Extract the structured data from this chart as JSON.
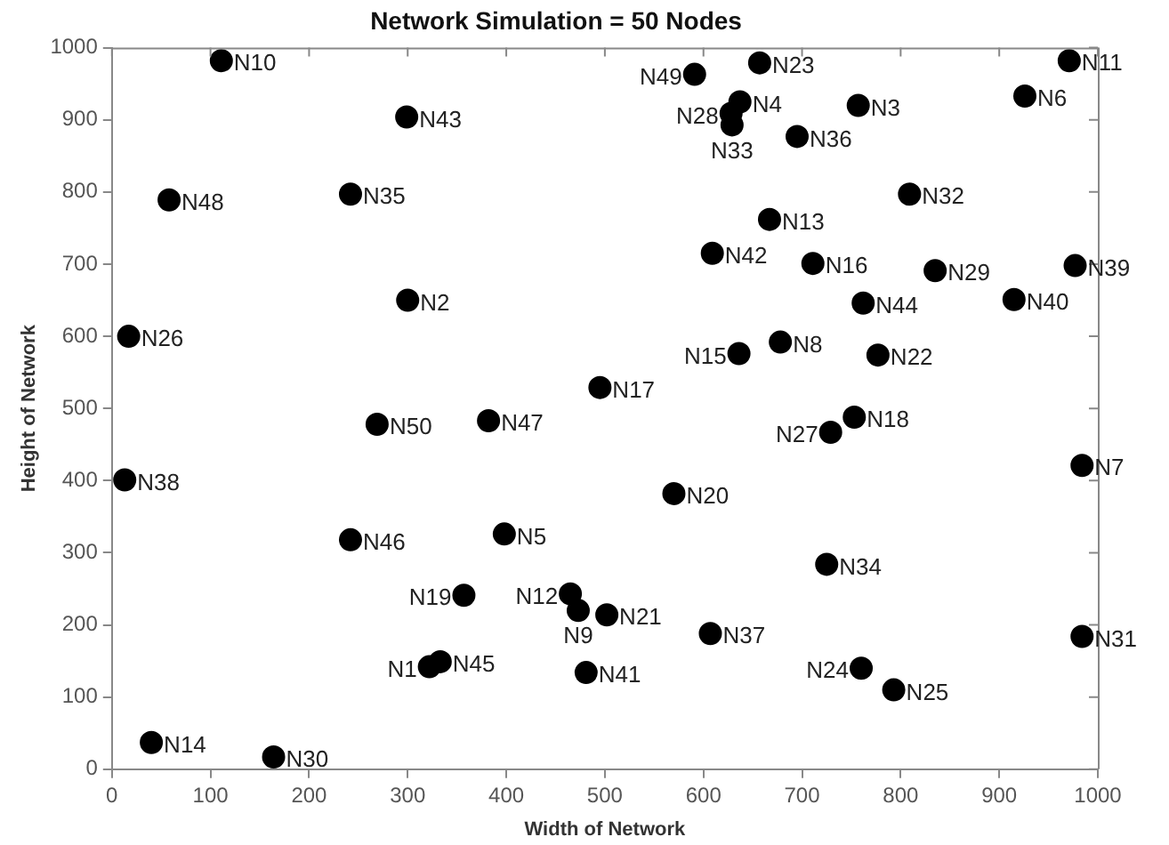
{
  "chart_data": {
    "type": "scatter",
    "title": "Network Simulation = 50 Nodes",
    "xlabel": "Width of Network",
    "ylabel": "Height of Network",
    "xlim": [
      0,
      1000
    ],
    "xticks": [
      0,
      100,
      200,
      300,
      400,
      500,
      600,
      700,
      800,
      900,
      1000
    ],
    "ylim": [
      0,
      1000
    ],
    "yticks": [
      0,
      100,
      200,
      300,
      400,
      500,
      600,
      700,
      800,
      900,
      1000
    ],
    "grid": false,
    "legend": false,
    "marker": "circle",
    "series": [
      {
        "color": "#000000",
        "x": [
          322,
          300,
          757,
          637,
          398,
          926,
          984,
          678,
          473,
          111,
          971,
          465,
          667,
          40,
          636,
          711,
          495,
          753,
          357,
          570,
          502,
          777,
          657,
          760,
          793,
          17,
          729,
          628,
          835,
          164,
          984,
          809,
          629,
          725,
          242,
          695,
          607,
          13,
          977,
          915,
          481,
          609,
          299,
          762,
          333,
          242,
          382,
          58,
          591,
          269
        ],
        "values": [
          142,
          650,
          920,
          925,
          326,
          933,
          421,
          592,
          220,
          982,
          982,
          243,
          762,
          37,
          576,
          701,
          529,
          488,
          241,
          382,
          214,
          574,
          979,
          140,
          110,
          600,
          467,
          909,
          691,
          17,
          184,
          797,
          893,
          284,
          797,
          877,
          188,
          401,
          698,
          651,
          134,
          715,
          904,
          646,
          149,
          318,
          483,
          789,
          963,
          478
        ]
      }
    ],
    "annotations": [
      {
        "text": "N1",
        "x": 322,
        "y": 142
      },
      {
        "text": "N2",
        "x": 300,
        "y": 650
      },
      {
        "text": "N3",
        "x": 757,
        "y": 920
      },
      {
        "text": "N4",
        "x": 637,
        "y": 925
      },
      {
        "text": "N5",
        "x": 398,
        "y": 326
      },
      {
        "text": "N6",
        "x": 926,
        "y": 933
      },
      {
        "text": "N7",
        "x": 984,
        "y": 421
      },
      {
        "text": "N8",
        "x": 678,
        "y": 592
      },
      {
        "text": "N9",
        "x": 473,
        "y": 220
      },
      {
        "text": "N10",
        "x": 111,
        "y": 982
      },
      {
        "text": "N11",
        "x": 971,
        "y": 982
      },
      {
        "text": "N12",
        "x": 465,
        "y": 243
      },
      {
        "text": "N13",
        "x": 667,
        "y": 762
      },
      {
        "text": "N14",
        "x": 40,
        "y": 37
      },
      {
        "text": "N15",
        "x": 636,
        "y": 576
      },
      {
        "text": "N16",
        "x": 711,
        "y": 701
      },
      {
        "text": "N17",
        "x": 495,
        "y": 529
      },
      {
        "text": "N18",
        "x": 753,
        "y": 488
      },
      {
        "text": "N19",
        "x": 357,
        "y": 241
      },
      {
        "text": "N20",
        "x": 570,
        "y": 382
      },
      {
        "text": "N21",
        "x": 502,
        "y": 214
      },
      {
        "text": "N22",
        "x": 777,
        "y": 574
      },
      {
        "text": "N23",
        "x": 657,
        "y": 979
      },
      {
        "text": "N24",
        "x": 760,
        "y": 140
      },
      {
        "text": "N25",
        "x": 793,
        "y": 110
      },
      {
        "text": "N26",
        "x": 17,
        "y": 600
      },
      {
        "text": "N27",
        "x": 729,
        "y": 467
      },
      {
        "text": "N28",
        "x": 628,
        "y": 909
      },
      {
        "text": "N29",
        "x": 835,
        "y": 691
      },
      {
        "text": "N30",
        "x": 164,
        "y": 17
      },
      {
        "text": "N31",
        "x": 984,
        "y": 184
      },
      {
        "text": "N32",
        "x": 809,
        "y": 797
      },
      {
        "text": "N33",
        "x": 629,
        "y": 893
      },
      {
        "text": "N34",
        "x": 725,
        "y": 284
      },
      {
        "text": "N35",
        "x": 242,
        "y": 797
      },
      {
        "text": "N36",
        "x": 695,
        "y": 877
      },
      {
        "text": "N37",
        "x": 607,
        "y": 188
      },
      {
        "text": "N38",
        "x": 13,
        "y": 401
      },
      {
        "text": "N39",
        "x": 977,
        "y": 698
      },
      {
        "text": "N40",
        "x": 915,
        "y": 651
      },
      {
        "text": "N41",
        "x": 481,
        "y": 134
      },
      {
        "text": "N42",
        "x": 609,
        "y": 715
      },
      {
        "text": "N43",
        "x": 299,
        "y": 904
      },
      {
        "text": "N44",
        "x": 762,
        "y": 646
      },
      {
        "text": "N45",
        "x": 333,
        "y": 149
      },
      {
        "text": "N46",
        "x": 242,
        "y": 318
      },
      {
        "text": "N47",
        "x": 382,
        "y": 483
      },
      {
        "text": "N48",
        "x": 58,
        "y": 789
      },
      {
        "text": "N49",
        "x": 591,
        "y": 963
      },
      {
        "text": "N50",
        "x": 269,
        "y": 478
      }
    ]
  }
}
